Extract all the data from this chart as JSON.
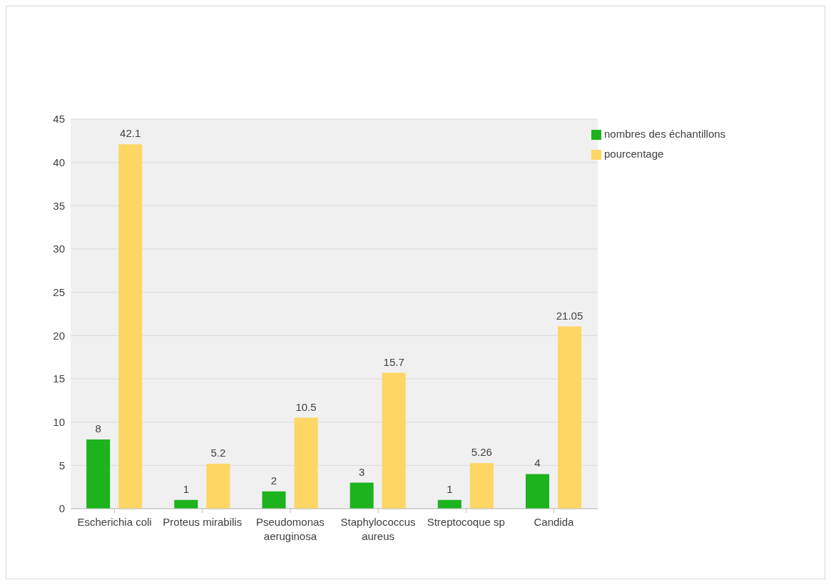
{
  "chart_data": {
    "type": "bar",
    "categories": [
      "Escherichia coli",
      "Proteus mirabilis",
      "Pseudomonas aeruginosa",
      "Staphylococcus aureus",
      "Streptocoque sp",
      "Candida"
    ],
    "series": [
      {
        "name": "nombres des échantillons",
        "color": "#1cb31c",
        "values": [
          8,
          1,
          2,
          3,
          1,
          4
        ]
      },
      {
        "name": "pourcentage",
        "color": "#fdd663",
        "values": [
          42.1,
          5.2,
          10.5,
          15.7,
          5.26,
          21.05
        ]
      }
    ],
    "ylim": [
      0,
      45
    ],
    "yticks": [
      0,
      5,
      10,
      15,
      20,
      25,
      30,
      35,
      40,
      45
    ],
    "grid": "y",
    "legend": "top right",
    "data_labels": true
  }
}
